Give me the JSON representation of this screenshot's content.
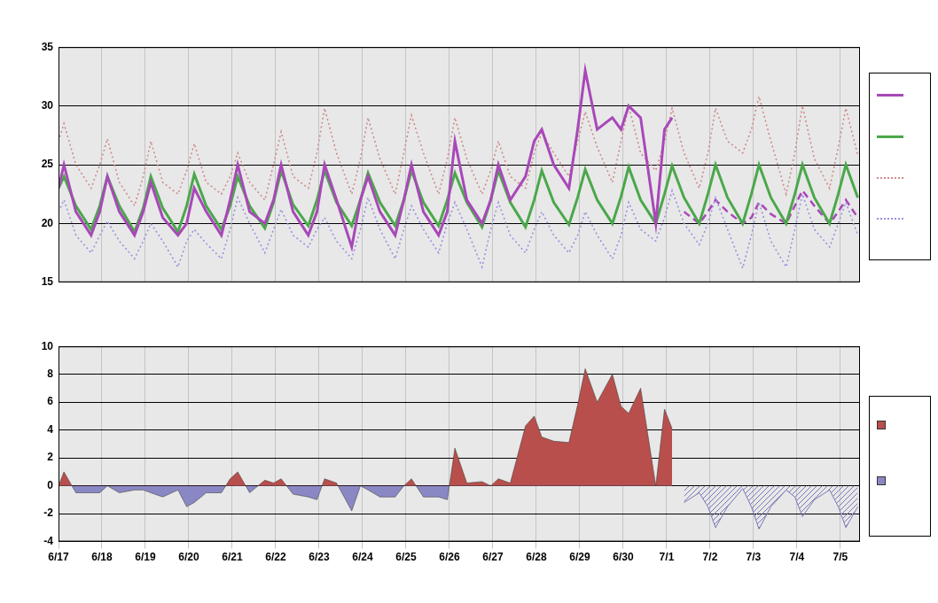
{
  "chart_data": [
    {
      "type": "line",
      "x": [
        0.5,
        0.625,
        0.9,
        1.25,
        1.45,
        1.625,
        1.9,
        2.25,
        2.45,
        2.625,
        2.9,
        3.25,
        3.45,
        3.625,
        3.9,
        4.25,
        4.45,
        4.625,
        4.9,
        5.25,
        5.45,
        5.625,
        5.9,
        6.25,
        6.45,
        6.625,
        6.9,
        7.25,
        7.45,
        7.625,
        7.9,
        8.25,
        8.45,
        8.625,
        8.9,
        9.25,
        9.45,
        9.625,
        9.9,
        10.25,
        10.45,
        10.625,
        10.9,
        11.25,
        11.45,
        11.625,
        11.9,
        12.25,
        12.45,
        12.625,
        12.9,
        13.25,
        13.45,
        13.625,
        13.9,
        14.25,
        14.45,
        14.625,
        14.9,
        15.25,
        15.45,
        15.625,
        15.9,
        16.25,
        16.45,
        16.625,
        16.9,
        17.25,
        17.45,
        17.625,
        17.9,
        18.25,
        18.45,
        18.625,
        18.9
      ],
      "series": [
        {
          "color": "#a848b8",
          "line_style": "solid",
          "values": [
            23,
            25,
            21,
            19,
            21,
            24,
            21,
            19,
            21,
            23.5,
            20.5,
            19,
            20,
            23,
            21,
            19,
            22,
            25,
            21,
            20,
            22,
            25,
            21,
            19,
            21,
            25,
            22,
            18,
            22,
            24,
            21,
            19,
            22,
            25,
            21,
            19,
            21,
            27,
            22,
            20,
            22,
            25,
            22,
            24,
            27,
            28,
            25,
            23,
            28,
            33,
            28,
            29,
            28,
            30,
            29,
            20,
            28,
            29,
            null,
            null,
            null,
            null,
            null,
            null,
            null,
            null,
            null,
            null,
            null,
            null,
            null,
            null,
            null,
            null,
            null
          ]
        },
        {
          "color": "#4aa84a",
          "line_style": "solid",
          "values": [
            23,
            24,
            21.5,
            19.5,
            21.5,
            24,
            21.5,
            19.3,
            21.3,
            24,
            21.3,
            19.3,
            21.5,
            24.2,
            21.5,
            19.5,
            21.5,
            24,
            21.5,
            19.6,
            21.8,
            24.5,
            21.6,
            19.8,
            22,
            24.5,
            21.8,
            19.8,
            22,
            24.3,
            21.8,
            19.8,
            22,
            24.5,
            21.8,
            19.8,
            22,
            24.3,
            21.8,
            19.7,
            22,
            24.5,
            21.8,
            19.7,
            22,
            24.5,
            21.8,
            19.9,
            22.2,
            24.6,
            22,
            20,
            22.3,
            24.8,
            22,
            20,
            22.5,
            24.9,
            22.2,
            20,
            22.5,
            25,
            22.2,
            20,
            22.5,
            25,
            22.2,
            20,
            22.5,
            25,
            22.2,
            20,
            22.5,
            25,
            22.2
          ]
        },
        {
          "color": "#d08a8a",
          "line_style": "dotted",
          "values": [
            27,
            28.5,
            25,
            23,
            25,
            27.2,
            23.5,
            21.5,
            24,
            27,
            23.5,
            22.5,
            24.5,
            26.8,
            23.5,
            22.5,
            24,
            26,
            23.5,
            22,
            25,
            27.8,
            24,
            23,
            26,
            29.8,
            26,
            22.5,
            25.5,
            29,
            25.5,
            22.5,
            26,
            29.2,
            26,
            22.5,
            25.5,
            29,
            25.5,
            22.5,
            24.5,
            27,
            24,
            23,
            26,
            27.7,
            26,
            24,
            27,
            29.5,
            26.5,
            23.5,
            27,
            30,
            26,
            24.5,
            27,
            29.8,
            26,
            23,
            26,
            29.8,
            27,
            26,
            28,
            30.8,
            27,
            22.5,
            26,
            30,
            25.5,
            23,
            26.5,
            29.8,
            25.8
          ]
        },
        {
          "color": "#9a90e0",
          "line_style": "dotted",
          "values": [
            21,
            22,
            19,
            17.5,
            19,
            20.2,
            18.5,
            17,
            18.5,
            20,
            18.5,
            16.3,
            18.5,
            19.5,
            18.3,
            17,
            19.5,
            22.2,
            20,
            17.5,
            19.5,
            21.2,
            19,
            18,
            19.5,
            20.5,
            18.5,
            17,
            19.5,
            22.2,
            19.5,
            17,
            19.5,
            21.5,
            19.5,
            17.5,
            20,
            21.8,
            19.5,
            16.3,
            19.5,
            21.8,
            19,
            17.5,
            19.5,
            21,
            19,
            17.5,
            19,
            21,
            19,
            17,
            19,
            21.8,
            19.5,
            18.5,
            20.5,
            22.8,
            20,
            18.2,
            20,
            22.2,
            19.5,
            16.2,
            19,
            21.8,
            18.5,
            16.3,
            19.5,
            22.5,
            19.5,
            18,
            20,
            21.8,
            19
          ]
        },
        {
          "color": "#a848b8",
          "line_style": "dashed",
          "values": [
            null,
            null,
            null,
            null,
            null,
            null,
            null,
            null,
            null,
            null,
            null,
            null,
            null,
            null,
            null,
            null,
            null,
            null,
            null,
            null,
            null,
            null,
            null,
            null,
            null,
            null,
            null,
            null,
            null,
            null,
            null,
            null,
            null,
            null,
            null,
            null,
            null,
            null,
            null,
            null,
            null,
            null,
            null,
            null,
            null,
            null,
            null,
            null,
            null,
            null,
            null,
            null,
            null,
            null,
            null,
            null,
            null,
            null,
            21,
            20,
            21,
            22,
            21,
            20,
            20.5,
            21.8,
            20.8,
            20,
            21.5,
            22.8,
            21.5,
            20,
            21,
            22,
            20.5
          ]
        }
      ],
      "xlim": [
        0.5,
        18.95
      ],
      "xticks": [
        {
          "value": 0.5,
          "label": "6/17"
        },
        {
          "value": 1.5,
          "label": "6/18"
        },
        {
          "value": 2.5,
          "label": "6/19"
        },
        {
          "value": 3.5,
          "label": "6/20"
        },
        {
          "value": 4.5,
          "label": "6/21"
        },
        {
          "value": 5.5,
          "label": "6/22"
        },
        {
          "value": 6.5,
          "label": "6/23"
        },
        {
          "value": 7.5,
          "label": "6/24"
        },
        {
          "value": 8.5,
          "label": "6/25"
        },
        {
          "value": 9.5,
          "label": "6/26"
        },
        {
          "value": 10.5,
          "label": "6/27"
        },
        {
          "value": 11.5,
          "label": "6/28"
        },
        {
          "value": 12.5,
          "label": "6/29"
        },
        {
          "value": 13.5,
          "label": "6/30"
        },
        {
          "value": 14.5,
          "label": "7/1"
        },
        {
          "value": 15.5,
          "label": "7/2"
        },
        {
          "value": 16.5,
          "label": "7/3"
        },
        {
          "value": 17.5,
          "label": "7/4"
        },
        {
          "value": 18.5,
          "label": "7/5"
        }
      ],
      "ylim": [
        15,
        35
      ],
      "yticks": [
        15,
        20,
        25,
        30,
        35
      ],
      "grid": true,
      "tick_labels": "y",
      "legend": "right"
    },
    {
      "type": "area",
      "x": [
        0.5,
        0.625,
        0.9,
        1.25,
        1.45,
        1.625,
        1.9,
        2.25,
        2.45,
        2.625,
        2.9,
        3.25,
        3.45,
        3.625,
        3.9,
        4.25,
        4.45,
        4.625,
        4.9,
        5.25,
        5.45,
        5.625,
        5.9,
        6.25,
        6.45,
        6.625,
        6.9,
        7.25,
        7.45,
        7.625,
        7.9,
        8.25,
        8.45,
        8.625,
        8.9,
        9.25,
        9.45,
        9.625,
        9.9,
        10.25,
        10.45,
        10.625,
        10.9,
        11.25,
        11.45,
        11.625,
        11.9,
        12.25,
        12.45,
        12.625,
        12.9,
        13.25,
        13.45,
        13.625,
        13.9,
        14.25,
        14.45,
        14.625,
        14.9,
        15.25,
        15.45,
        15.625,
        15.9,
        16.25,
        16.45,
        16.625,
        16.9,
        17.25,
        17.45,
        17.625,
        17.9,
        18.25,
        18.45,
        18.625,
        18.9
      ],
      "series": [
        {
          "colors": [
            "#b94f4c",
            "#8a88c4"
          ],
          "values": [
            0,
            1,
            -0.5,
            -0.5,
            -0.5,
            0,
            -0.5,
            -0.3,
            -0.3,
            -0.5,
            -0.8,
            -0.3,
            -1.5,
            -1.2,
            -0.5,
            -0.5,
            0.5,
            1,
            -0.5,
            0.4,
            0.2,
            0.5,
            -0.6,
            -0.8,
            -1,
            0.5,
            0.2,
            -1.8,
            0,
            -0.3,
            -0.8,
            -0.8,
            0,
            0.5,
            -0.8,
            -0.8,
            -1,
            2.7,
            0.2,
            0.3,
            0,
            0.5,
            0.2,
            4.3,
            5,
            3.5,
            3.2,
            3.1,
            5.8,
            8.4,
            6,
            8,
            5.7,
            5.2,
            7,
            0,
            5.5,
            4.1,
            null,
            null,
            null,
            null,
            null,
            null,
            null,
            null,
            null,
            null,
            null,
            null,
            null,
            null,
            null,
            null,
            null
          ]
        },
        {
          "color": "#7a78b8",
          "line_style": "hatched",
          "values": [
            null,
            null,
            null,
            null,
            null,
            null,
            null,
            null,
            null,
            null,
            null,
            null,
            null,
            null,
            null,
            null,
            null,
            null,
            null,
            null,
            null,
            null,
            null,
            null,
            null,
            null,
            null,
            null,
            null,
            null,
            null,
            null,
            null,
            null,
            null,
            null,
            null,
            null,
            null,
            null,
            null,
            null,
            null,
            null,
            null,
            null,
            null,
            null,
            null,
            null,
            null,
            null,
            null,
            null,
            null,
            null,
            null,
            null,
            -1.2,
            -0.5,
            -1.5,
            -3,
            -1.5,
            -0.2,
            -1.5,
            -3.1,
            -1.5,
            -0.3,
            -0.8,
            -2.2,
            -1,
            -0.3,
            -1.5,
            -3,
            -1.5
          ]
        }
      ],
      "xlim": [
        0.5,
        18.95
      ],
      "xticks": [
        {
          "value": 0.5,
          "label": "6/17"
        },
        {
          "value": 1.5,
          "label": "6/18"
        },
        {
          "value": 2.5,
          "label": "6/19"
        },
        {
          "value": 3.5,
          "label": "6/20"
        },
        {
          "value": 4.5,
          "label": "6/21"
        },
        {
          "value": 5.5,
          "label": "6/22"
        },
        {
          "value": 6.5,
          "label": "6/23"
        },
        {
          "value": 7.5,
          "label": "6/24"
        },
        {
          "value": 8.5,
          "label": "6/25"
        },
        {
          "value": 9.5,
          "label": "6/26"
        },
        {
          "value": 10.5,
          "label": "6/27"
        },
        {
          "value": 11.5,
          "label": "6/28"
        },
        {
          "value": 12.5,
          "label": "6/29"
        },
        {
          "value": 13.5,
          "label": "6/30"
        },
        {
          "value": 14.5,
          "label": "7/1"
        },
        {
          "value": 15.5,
          "label": "7/2"
        },
        {
          "value": 16.5,
          "label": "7/3"
        },
        {
          "value": 17.5,
          "label": "7/4"
        },
        {
          "value": 18.5,
          "label": "7/5"
        }
      ],
      "ylim": [
        -4,
        10
      ],
      "yticks": [
        -4,
        -2,
        0,
        2,
        4,
        6,
        8,
        10
      ],
      "grid": true,
      "legend": "right"
    }
  ]
}
